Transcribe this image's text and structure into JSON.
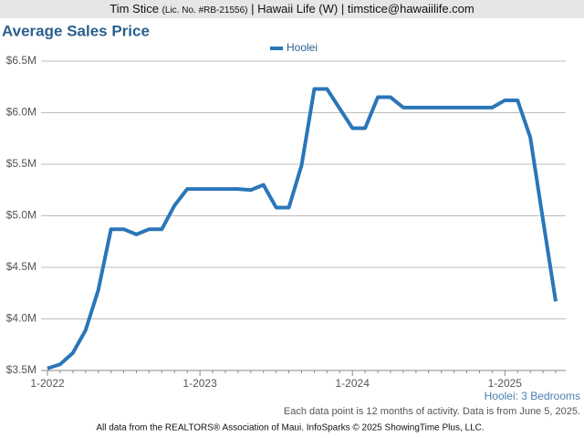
{
  "header": {
    "name": "Tim Stice",
    "license": "(Lic. No. #RB-21556)",
    "rest": "| Hawaii Life (W) | timstice@hawaiilife.com"
  },
  "chart_data": {
    "type": "line",
    "title": "Average Sales Price",
    "categories": [
      "1-2022",
      null,
      null,
      null,
      null,
      null,
      null,
      null,
      null,
      null,
      null,
      null,
      "1-2023",
      null,
      null,
      null,
      null,
      null,
      null,
      null,
      null,
      null,
      null,
      null,
      "1-2024",
      null,
      null,
      null,
      null,
      null,
      null,
      null,
      null,
      null,
      null,
      null,
      "1-2025",
      null,
      null,
      null,
      null
    ],
    "series": [
      {
        "name": "Hoolei",
        "color": "#2a76b8",
        "values": [
          3520000,
          3560000,
          3670000,
          3890000,
          4280000,
          4870000,
          4870000,
          4820000,
          4870000,
          4870000,
          5100000,
          5260000,
          5260000,
          5260000,
          5260000,
          5260000,
          5250000,
          5300000,
          5080000,
          5080000,
          5490000,
          6230000,
          6230000,
          6040000,
          5850000,
          5850000,
          6150000,
          6150000,
          6050000,
          6050000,
          6050000,
          6050000,
          6050000,
          6050000,
          6050000,
          6050000,
          6120000,
          6120000,
          5760000,
          4960000,
          4170000
        ]
      }
    ],
    "ylim": [
      3500000,
      6500000
    ],
    "yticks": [
      {
        "value": 3500000,
        "label": "$3.5M"
      },
      {
        "value": 4000000,
        "label": "$4.0M"
      },
      {
        "value": 4500000,
        "label": "$4.5M"
      },
      {
        "value": 5000000,
        "label": "$5.0M"
      },
      {
        "value": 5500000,
        "label": "$5.5M"
      },
      {
        "value": 6000000,
        "label": "$6.0M"
      },
      {
        "value": 6500000,
        "label": "$6.5M"
      }
    ],
    "grid": true,
    "legend": "top",
    "subtitle": "Hoolei: 3 Bedrooms",
    "note": "Each data point is 12 months of activity. Data is from June 5, 2025.",
    "source": "All data from the REALTORS® Association of Maui. InfoSparks © 2025 ShowingTime Plus, LLC."
  }
}
